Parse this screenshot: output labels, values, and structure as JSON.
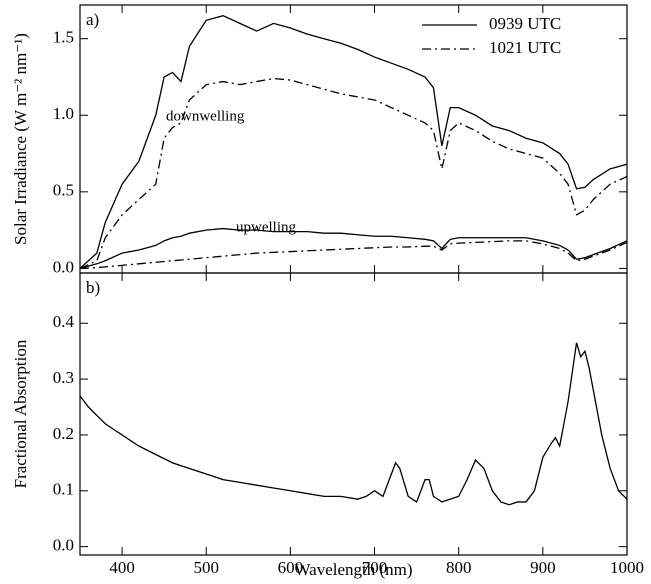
{
  "chart_data": [
    {
      "type": "line",
      "panel_label": "a)",
      "ylabel": "Solar Irradiance (W m⁻² nm⁻¹)",
      "annotations": [
        "downwelling",
        "upwelling"
      ],
      "x": [
        350,
        370,
        380,
        400,
        420,
        440,
        450,
        460,
        470,
        480,
        500,
        520,
        540,
        560,
        580,
        600,
        620,
        640,
        660,
        680,
        700,
        720,
        740,
        760,
        770,
        780,
        790,
        800,
        820,
        840,
        860,
        880,
        900,
        920,
        930,
        940,
        950,
        960,
        980,
        1000
      ],
      "series": [
        {
          "name": "0939 UTC",
          "color": "#000000",
          "dash": "solid",
          "downwelling": [
            0,
            0.1,
            0.3,
            0.55,
            0.7,
            1.0,
            1.25,
            1.28,
            1.22,
            1.45,
            1.62,
            1.65,
            1.6,
            1.55,
            1.6,
            1.57,
            1.53,
            1.5,
            1.47,
            1.43,
            1.38,
            1.34,
            1.3,
            1.25,
            1.18,
            0.8,
            1.05,
            1.05,
            1.0,
            0.93,
            0.9,
            0.85,
            0.82,
            0.75,
            0.68,
            0.52,
            0.53,
            0.58,
            0.65,
            0.68
          ],
          "upwelling": [
            0,
            0.03,
            0.05,
            0.1,
            0.12,
            0.15,
            0.18,
            0.2,
            0.21,
            0.23,
            0.25,
            0.26,
            0.25,
            0.25,
            0.24,
            0.24,
            0.24,
            0.23,
            0.23,
            0.22,
            0.21,
            0.21,
            0.2,
            0.19,
            0.18,
            0.13,
            0.19,
            0.2,
            0.2,
            0.2,
            0.2,
            0.2,
            0.18,
            0.15,
            0.12,
            0.06,
            0.07,
            0.09,
            0.13,
            0.18
          ]
        },
        {
          "name": "1021 UTC",
          "color": "#000000",
          "dash": "dashdot",
          "downwelling": [
            0,
            0.05,
            0.2,
            0.35,
            0.45,
            0.55,
            0.85,
            0.92,
            0.95,
            1.1,
            1.2,
            1.22,
            1.2,
            1.22,
            1.24,
            1.23,
            1.2,
            1.17,
            1.14,
            1.12,
            1.1,
            1.05,
            1.0,
            0.95,
            0.9,
            0.65,
            0.9,
            0.95,
            0.9,
            0.83,
            0.78,
            0.75,
            0.72,
            0.62,
            0.55,
            0.35,
            0.38,
            0.45,
            0.55,
            0.6
          ],
          "upwelling": [
            0,
            0.005,
            0.01,
            0.02,
            0.03,
            0.04,
            0.045,
            0.05,
            0.055,
            0.06,
            0.07,
            0.08,
            0.09,
            0.1,
            0.105,
            0.11,
            0.115,
            0.12,
            0.125,
            0.13,
            0.135,
            0.14,
            0.14,
            0.145,
            0.145,
            0.12,
            0.16,
            0.165,
            0.17,
            0.175,
            0.18,
            0.18,
            0.16,
            0.13,
            0.1,
            0.05,
            0.06,
            0.08,
            0.12,
            0.17
          ]
        }
      ],
      "xlim": [
        350,
        1000
      ],
      "xticks": [
        400,
        500,
        600,
        700,
        800,
        900,
        1000
      ],
      "ylim": [
        -0.03,
        1.72
      ],
      "yticks": [
        {
          "value": 0,
          "label": "0.0"
        },
        0.5,
        {
          "value": 1,
          "label": "1.0"
        },
        1.5
      ],
      "legend": "upper right"
    },
    {
      "type": "line",
      "panel_label": "b)",
      "ylabel": "Fractional Absorption",
      "xlabel": "Wavelength (nm)",
      "x": [
        350,
        360,
        370,
        380,
        390,
        400,
        420,
        440,
        460,
        480,
        500,
        520,
        540,
        560,
        580,
        600,
        620,
        640,
        660,
        680,
        690,
        700,
        710,
        720,
        725,
        730,
        740,
        750,
        760,
        765,
        770,
        780,
        790,
        800,
        810,
        820,
        830,
        840,
        850,
        860,
        870,
        880,
        890,
        900,
        910,
        915,
        920,
        930,
        940,
        945,
        950,
        955,
        960,
        970,
        980,
        990,
        1000
      ],
      "series": [
        {
          "color": "#000000",
          "dash": "solid",
          "values": [
            0.27,
            0.25,
            0.235,
            0.22,
            0.21,
            0.2,
            0.18,
            0.165,
            0.15,
            0.14,
            0.13,
            0.12,
            0.115,
            0.11,
            0.105,
            0.1,
            0.095,
            0.09,
            0.09,
            0.085,
            0.09,
            0.1,
            0.09,
            0.13,
            0.15,
            0.14,
            0.09,
            0.08,
            0.12,
            0.12,
            0.09,
            0.08,
            0.085,
            0.09,
            0.12,
            0.155,
            0.14,
            0.1,
            0.08,
            0.075,
            0.08,
            0.08,
            0.1,
            0.16,
            0.185,
            0.195,
            0.18,
            0.26,
            0.365,
            0.34,
            0.35,
            0.32,
            0.28,
            0.2,
            0.14,
            0.1,
            0.085
          ]
        }
      ],
      "xlim": [
        350,
        1000
      ],
      "xticks": [
        400,
        500,
        600,
        700,
        800,
        900,
        1000
      ],
      "ylim": [
        -0.015,
        0.49
      ],
      "yticks": [
        {
          "value": 0,
          "label": "0.0"
        },
        0.1,
        0.2,
        0.3,
        0.4
      ]
    }
  ]
}
